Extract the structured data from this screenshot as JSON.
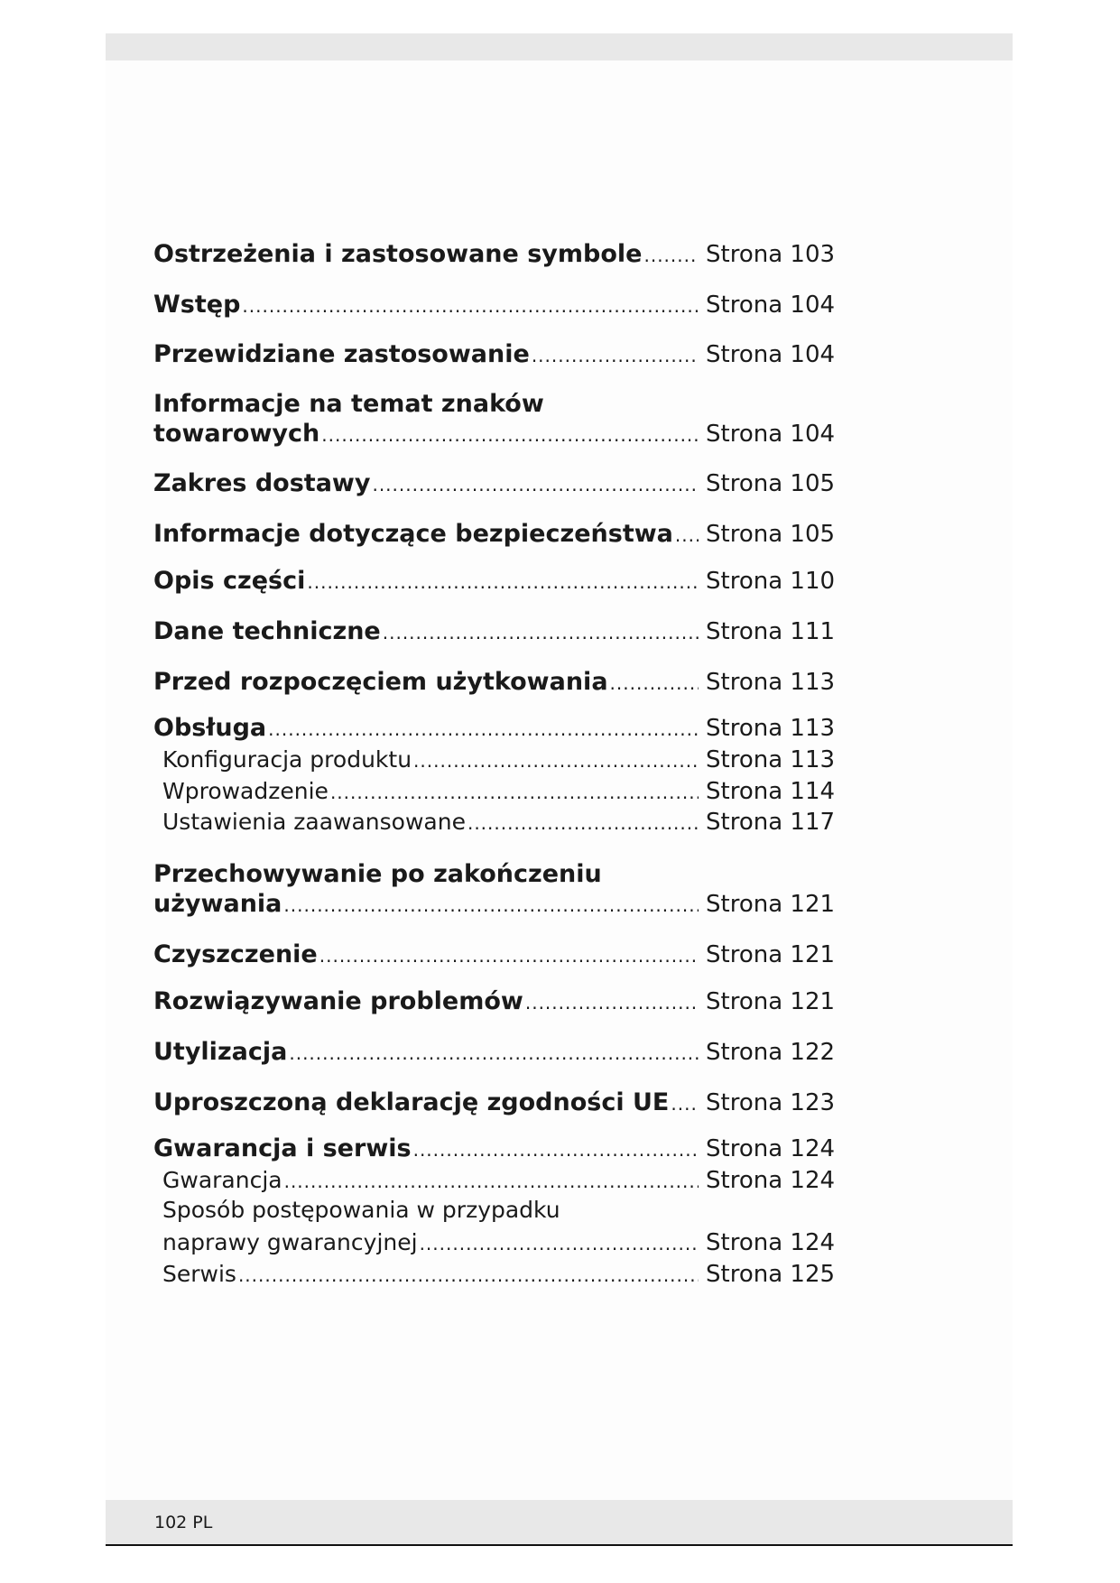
{
  "toc": [
    {
      "title": "Ostrzeżenia i zastosowane symbole",
      "page": "Strona 103",
      "level": 1
    },
    {
      "title": "Wstęp",
      "page": "Strona 104",
      "level": 1
    },
    {
      "title": "Przewidziane zastosowanie",
      "page": "Strona 104",
      "level": 1
    },
    {
      "title_line1": "Informacje na temat znaków",
      "title": "towarowych",
      "page": "Strona 104",
      "level": 1
    },
    {
      "title": "Zakres dostawy",
      "page": "Strona 105",
      "level": 1
    },
    {
      "title": "Informacje dotyczące bezpieczeństwa",
      "page": "Strona 105",
      "level": 1
    },
    {
      "title": "Opis części",
      "page": "Strona 110",
      "level": 1
    },
    {
      "title": "Dane techniczne",
      "page": "Strona 111",
      "level": 1
    },
    {
      "title": "Przed rozpoczęciem użytkowania",
      "page": "Strona 113",
      "level": 1
    },
    {
      "title": "Obsługa",
      "page": "Strona 113",
      "level": 1
    },
    {
      "title": "Konfiguracja produktu",
      "page": "Strona 113",
      "level": 2
    },
    {
      "title": "Wprowadzenie",
      "page": "Strona 114",
      "level": 2
    },
    {
      "title": "Ustawienia zaawansowane",
      "page": "Strona 117",
      "level": 2
    },
    {
      "title_line1": "Przechowywanie po zakończeniu",
      "title": "używania",
      "page": "Strona 121",
      "level": 1
    },
    {
      "title": "Czyszczenie",
      "page": "Strona 121",
      "level": 1
    },
    {
      "title": "Rozwiązywanie problemów",
      "page": "Strona 121",
      "level": 1
    },
    {
      "title": "Utylizacja",
      "page": "Strona 122",
      "level": 1
    },
    {
      "title": "Uproszczoną deklarację zgodności UE",
      "page": "Strona 123",
      "level": 1
    },
    {
      "title": "Gwarancja i serwis",
      "page": "Strona 124",
      "level": 1
    },
    {
      "title": "Gwarancja",
      "page": "Strona 124",
      "level": 2
    },
    {
      "title_line1": "Sposób postępowania w przypadku",
      "title": "naprawy gwarancyjnej",
      "page": "Strona 124",
      "level": 2
    },
    {
      "title": "Serwis",
      "page": "Strona 125",
      "level": 2
    }
  ],
  "footer": {
    "page_label": "102 PL"
  }
}
